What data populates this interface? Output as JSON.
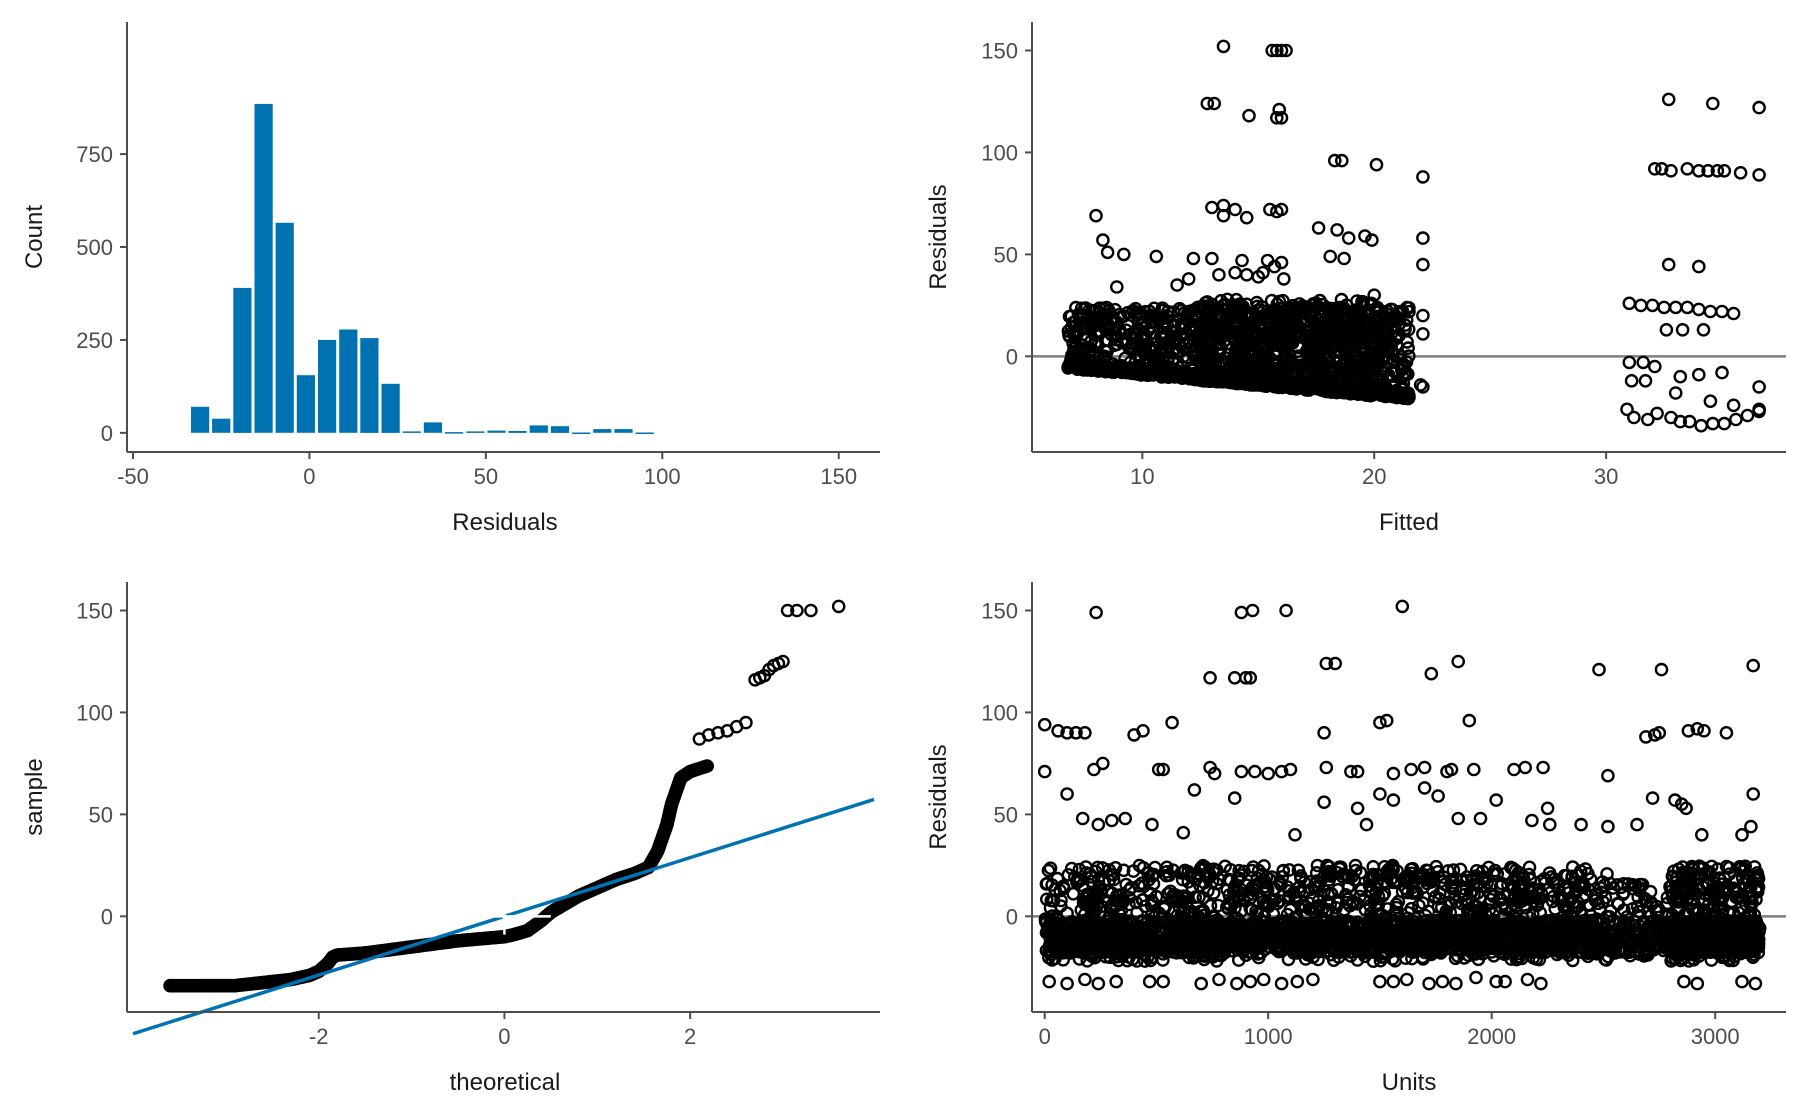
{
  "colors": {
    "bar": "#0072B2",
    "qq_line": "#0072B2",
    "points": "#000000",
    "axis": "#4d4d4d",
    "ref_line": "#7f7f7f"
  },
  "chart_data": [
    {
      "type": "bar",
      "xlabel": "Residuals",
      "ylabel": "Count",
      "xlim": [
        -50,
        160
      ],
      "ylim": [
        -30,
        1100
      ],
      "x_ticks": [
        -50,
        0,
        50,
        100,
        150
      ],
      "y_ticks": [
        0,
        250,
        500,
        750
      ],
      "bin_width": 6,
      "bins": [
        {
          "x": -31,
          "count": 70
        },
        {
          "x": -25,
          "count": 38
        },
        {
          "x": -19,
          "count": 390
        },
        {
          "x": -13,
          "count": 885
        },
        {
          "x": -7,
          "count": 565
        },
        {
          "x": -1,
          "count": 155
        },
        {
          "x": 5,
          "count": 250
        },
        {
          "x": 11,
          "count": 278
        },
        {
          "x": 17,
          "count": 255
        },
        {
          "x": 23,
          "count": 132
        },
        {
          "x": 29,
          "count": 4
        },
        {
          "x": 35,
          "count": 28
        },
        {
          "x": 41,
          "count": 2
        },
        {
          "x": 47,
          "count": 4
        },
        {
          "x": 53,
          "count": 6
        },
        {
          "x": 59,
          "count": 5
        },
        {
          "x": 65,
          "count": 20
        },
        {
          "x": 71,
          "count": 18
        },
        {
          "x": 77,
          "count": 1
        },
        {
          "x": 83,
          "count": 10
        },
        {
          "x": 89,
          "count": 10
        },
        {
          "x": 95,
          "count": 1
        }
      ]
    },
    {
      "type": "scatter",
      "xlabel": "Fitted",
      "ylabel": "Residuals",
      "xlim": [
        5.5,
        37.5
      ],
      "ylim": [
        -43,
        163
      ],
      "x_ticks": [
        10,
        20,
        30
      ],
      "y_ticks": [
        0,
        50,
        100,
        150
      ],
      "reference_line_y": 0,
      "points": [
        [
          13.5,
          152
        ],
        [
          15.6,
          150
        ],
        [
          15.8,
          150
        ],
        [
          16.0,
          150
        ],
        [
          16.2,
          150
        ],
        [
          15.9,
          121
        ],
        [
          15.8,
          117
        ],
        [
          16.0,
          117
        ],
        [
          14.6,
          118
        ],
        [
          12.8,
          124
        ],
        [
          13.1,
          124
        ],
        [
          18.3,
          96
        ],
        [
          18.6,
          96
        ],
        [
          20.1,
          94
        ],
        [
          22.1,
          88
        ],
        [
          8.0,
          69
        ],
        [
          13.0,
          73
        ],
        [
          13.5,
          74
        ],
        [
          14.0,
          72
        ],
        [
          15.5,
          72
        ],
        [
          15.8,
          71
        ],
        [
          16.0,
          72
        ],
        [
          13.5,
          69
        ],
        [
          14.5,
          68
        ],
        [
          8.3,
          57
        ],
        [
          8.5,
          51
        ],
        [
          9.2,
          50
        ],
        [
          10.6,
          49
        ],
        [
          12.2,
          48
        ],
        [
          13.0,
          48
        ],
        [
          14.3,
          47
        ],
        [
          15.4,
          47
        ],
        [
          16.0,
          46
        ],
        [
          17.6,
          63
        ],
        [
          18.4,
          62
        ],
        [
          18.9,
          58
        ],
        [
          19.6,
          59
        ],
        [
          19.9,
          57
        ],
        [
          18.1,
          49
        ],
        [
          18.7,
          48
        ],
        [
          22.1,
          58
        ],
        [
          22.1,
          45
        ],
        [
          15.7,
          44
        ],
        [
          16.1,
          38
        ],
        [
          14.0,
          41
        ],
        [
          14.5,
          40
        ],
        [
          15.0,
          39
        ],
        [
          8.9,
          34
        ],
        [
          11.5,
          35
        ],
        [
          12.0,
          38
        ],
        [
          13.3,
          40
        ],
        [
          15.2,
          41
        ],
        [
          20.0,
          30
        ],
        [
          21.0,
          19
        ],
        [
          22.1,
          20
        ],
        [
          22.1,
          11
        ],
        [
          20.8,
          12
        ],
        [
          20.2,
          -3
        ],
        [
          21.2,
          -15
        ],
        [
          21.2,
          -18
        ],
        [
          22.0,
          -14
        ],
        [
          22.1,
          -15
        ],
        [
          32.7,
          126
        ],
        [
          34.6,
          124
        ],
        [
          36.6,
          122
        ],
        [
          32.1,
          92
        ],
        [
          32.4,
          92
        ],
        [
          32.8,
          91
        ],
        [
          33.5,
          92
        ],
        [
          34.0,
          91
        ],
        [
          34.4,
          91
        ],
        [
          34.8,
          91
        ],
        [
          35.1,
          91
        ],
        [
          35.8,
          90
        ],
        [
          36.6,
          89
        ],
        [
          32.7,
          45
        ],
        [
          34.0,
          44
        ],
        [
          31.0,
          26
        ],
        [
          31.5,
          25
        ],
        [
          32.0,
          25
        ],
        [
          32.5,
          24
        ],
        [
          33.0,
          24
        ],
        [
          33.5,
          24
        ],
        [
          34.0,
          23
        ],
        [
          34.5,
          22
        ],
        [
          35.0,
          22
        ],
        [
          35.5,
          21
        ],
        [
          32.6,
          13
        ],
        [
          33.3,
          13
        ],
        [
          34.2,
          13
        ],
        [
          31.0,
          -3
        ],
        [
          31.6,
          -3
        ],
        [
          32.1,
          -5
        ],
        [
          31.1,
          -12
        ],
        [
          31.7,
          -12
        ],
        [
          33.2,
          -10
        ],
        [
          34.0,
          -9
        ],
        [
          35.0,
          -8
        ],
        [
          36.6,
          -15
        ],
        [
          36.6,
          -26
        ],
        [
          36.6,
          -27
        ],
        [
          34.5,
          -22
        ],
        [
          35.5,
          -24
        ],
        [
          33.0,
          -18
        ],
        [
          30.9,
          -26
        ],
        [
          31.2,
          -30
        ],
        [
          31.8,
          -31
        ],
        [
          32.2,
          -28
        ],
        [
          32.8,
          -30
        ],
        [
          33.2,
          -32
        ],
        [
          33.6,
          -32
        ],
        [
          34.1,
          -34
        ],
        [
          34.6,
          -33
        ],
        [
          35.1,
          -33
        ],
        [
          35.6,
          -31
        ],
        [
          36.1,
          -29
        ]
      ],
      "dense_regions": [
        {
          "x": [
            6.8,
            21.5
          ],
          "y_bottom_start": -6,
          "y_bottom_end": -21,
          "y_top": 24,
          "count": 1500
        },
        {
          "x": [
            12.5,
            20.5
          ],
          "y_bottom_start": -12,
          "y_bottom_end": -18,
          "y_top": 28,
          "count": 900
        }
      ]
    },
    {
      "type": "scatter",
      "xlabel": "theoretical",
      "ylabel": "sample",
      "xlim": [
        -4.0,
        3.98
      ],
      "ylim": [
        -43,
        163
      ],
      "x_ticks": [
        -2,
        0,
        2
      ],
      "y_ticks": [
        0,
        50,
        100,
        150
      ],
      "reference_line": {
        "slope": 14.4,
        "intercept": 0
      },
      "qq_curve": [
        [
          -3.6,
          -34
        ],
        [
          -3.3,
          -34
        ],
        [
          -3.1,
          -34
        ],
        [
          -2.9,
          -34
        ],
        [
          -2.7,
          -33
        ],
        [
          -2.5,
          -32
        ],
        [
          -2.3,
          -31
        ],
        [
          -2.1,
          -29
        ],
        [
          -2.0,
          -27
        ],
        [
          -1.9,
          -23
        ],
        [
          -1.85,
          -20
        ],
        [
          -1.8,
          -19
        ],
        [
          -1.5,
          -18
        ],
        [
          -1.0,
          -15
        ],
        [
          -0.5,
          -12
        ],
        [
          0.0,
          -10
        ],
        [
          0.1,
          -9
        ],
        [
          0.25,
          -7
        ],
        [
          0.4,
          -2
        ],
        [
          0.5,
          2
        ],
        [
          0.8,
          10
        ],
        [
          1.0,
          14
        ],
        [
          1.2,
          18
        ],
        [
          1.4,
          21
        ],
        [
          1.55,
          24
        ],
        [
          1.65,
          32
        ],
        [
          1.75,
          45
        ],
        [
          1.8,
          55
        ],
        [
          1.9,
          68
        ],
        [
          2.0,
          71
        ],
        [
          2.2,
          74
        ]
      ],
      "upper_tail": [
        [
          2.1,
          87
        ],
        [
          2.2,
          89
        ],
        [
          2.3,
          90
        ],
        [
          2.4,
          91
        ],
        [
          2.5,
          93
        ],
        [
          2.6,
          95
        ],
        [
          2.7,
          116
        ],
        [
          2.75,
          117
        ],
        [
          2.8,
          118
        ],
        [
          2.85,
          121
        ],
        [
          2.9,
          123
        ],
        [
          2.95,
          124
        ],
        [
          3.0,
          125
        ],
        [
          3.05,
          150
        ],
        [
          3.15,
          150
        ],
        [
          3.3,
          150
        ],
        [
          3.6,
          152
        ]
      ]
    },
    {
      "type": "scatter",
      "xlabel": "Units",
      "ylabel": "Residuals",
      "xlim": [
        -30,
        3290
      ],
      "ylim": [
        -43,
        163
      ],
      "x_ticks": [
        0,
        1000,
        2000,
        3000
      ],
      "y_ticks": [
        0,
        50,
        100,
        150
      ],
      "reference_line_y": 0,
      "points": [
        [
          230,
          149
        ],
        [
          880,
          149
        ],
        [
          930,
          150
        ],
        [
          1080,
          150
        ],
        [
          1600,
          152
        ],
        [
          1260,
          124
        ],
        [
          1300,
          124
        ],
        [
          1730,
          119
        ],
        [
          1850,
          125
        ],
        [
          2480,
          121
        ],
        [
          2760,
          121
        ],
        [
          3170,
          123
        ],
        [
          740,
          117
        ],
        [
          850,
          117
        ],
        [
          900,
          117
        ],
        [
          920,
          117
        ],
        [
          0,
          94
        ],
        [
          60,
          91
        ],
        [
          100,
          90
        ],
        [
          140,
          90
        ],
        [
          180,
          90
        ],
        [
          400,
          89
        ],
        [
          440,
          91
        ],
        [
          570,
          95
        ],
        [
          1250,
          90
        ],
        [
          1500,
          95
        ],
        [
          1530,
          96
        ],
        [
          1900,
          96
        ],
        [
          2690,
          88
        ],
        [
          2730,
          89
        ],
        [
          2750,
          90
        ],
        [
          2880,
          91
        ],
        [
          2920,
          92
        ],
        [
          2950,
          91
        ],
        [
          3050,
          90
        ],
        [
          0,
          71
        ],
        [
          220,
          72
        ],
        [
          260,
          75
        ],
        [
          510,
          72
        ],
        [
          530,
          72
        ],
        [
          740,
          73
        ],
        [
          760,
          70
        ],
        [
          880,
          71
        ],
        [
          940,
          71
        ],
        [
          1000,
          70
        ],
        [
          1060,
          71
        ],
        [
          1100,
          72
        ],
        [
          1260,
          73
        ],
        [
          1370,
          71
        ],
        [
          1400,
          71
        ],
        [
          1560,
          70
        ],
        [
          1640,
          72
        ],
        [
          1700,
          73
        ],
        [
          1800,
          71
        ],
        [
          1820,
          72
        ],
        [
          1920,
          72
        ],
        [
          2100,
          72
        ],
        [
          2150,
          73
        ],
        [
          2230,
          73
        ],
        [
          2520,
          69
        ],
        [
          3170,
          60
        ],
        [
          2720,
          58
        ],
        [
          2820,
          57
        ],
        [
          2850,
          55
        ],
        [
          100,
          60
        ],
        [
          170,
          48
        ],
        [
          240,
          45
        ],
        [
          300,
          47
        ],
        [
          360,
          48
        ],
        [
          480,
          45
        ],
        [
          620,
          41
        ],
        [
          670,
          62
        ],
        [
          850,
          58
        ],
        [
          1120,
          40
        ],
        [
          1250,
          56
        ],
        [
          1400,
          53
        ],
        [
          1440,
          45
        ],
        [
          1500,
          60
        ],
        [
          1560,
          57
        ],
        [
          1700,
          63
        ],
        [
          1760,
          59
        ],
        [
          1850,
          48
        ],
        [
          1950,
          48
        ],
        [
          2020,
          57
        ],
        [
          2180,
          47
        ],
        [
          2250,
          53
        ],
        [
          2260,
          45
        ],
        [
          2400,
          45
        ],
        [
          2520,
          44
        ],
        [
          2650,
          45
        ],
        [
          2870,
          53
        ],
        [
          2940,
          40
        ],
        [
          3120,
          40
        ],
        [
          3160,
          44
        ]
      ],
      "dense_regions": [
        {
          "x": [
            0,
            2550
          ],
          "y_bottom": -22,
          "y_top": 25,
          "count": 2600
        },
        {
          "x": [
            2550,
            2800
          ],
          "y_bottom": -20,
          "y_top": 16,
          "count": 150
        },
        {
          "x": [
            2800,
            3200
          ],
          "y_bottom": -22,
          "y_top": 25,
          "count": 650
        }
      ],
      "low_points": [
        [
          20,
          -32
        ],
        [
          100,
          -33
        ],
        [
          180,
          -31
        ],
        [
          240,
          -33
        ],
        [
          320,
          -32
        ],
        [
          470,
          -32
        ],
        [
          530,
          -32
        ],
        [
          700,
          -33
        ],
        [
          780,
          -31
        ],
        [
          860,
          -33
        ],
        [
          920,
          -32
        ],
        [
          980,
          -31
        ],
        [
          1060,
          -33
        ],
        [
          1130,
          -32
        ],
        [
          1200,
          -31
        ],
        [
          1500,
          -32
        ],
        [
          1560,
          -32
        ],
        [
          1620,
          -31
        ],
        [
          1720,
          -33
        ],
        [
          1780,
          -32
        ],
        [
          1840,
          -33
        ],
        [
          1930,
          -30
        ],
        [
          2020,
          -32
        ],
        [
          2060,
          -32
        ],
        [
          2160,
          -31
        ],
        [
          2220,
          -33
        ],
        [
          2860,
          -32
        ],
        [
          2920,
          -33
        ],
        [
          3120,
          -32
        ],
        [
          3180,
          -33
        ]
      ]
    }
  ]
}
